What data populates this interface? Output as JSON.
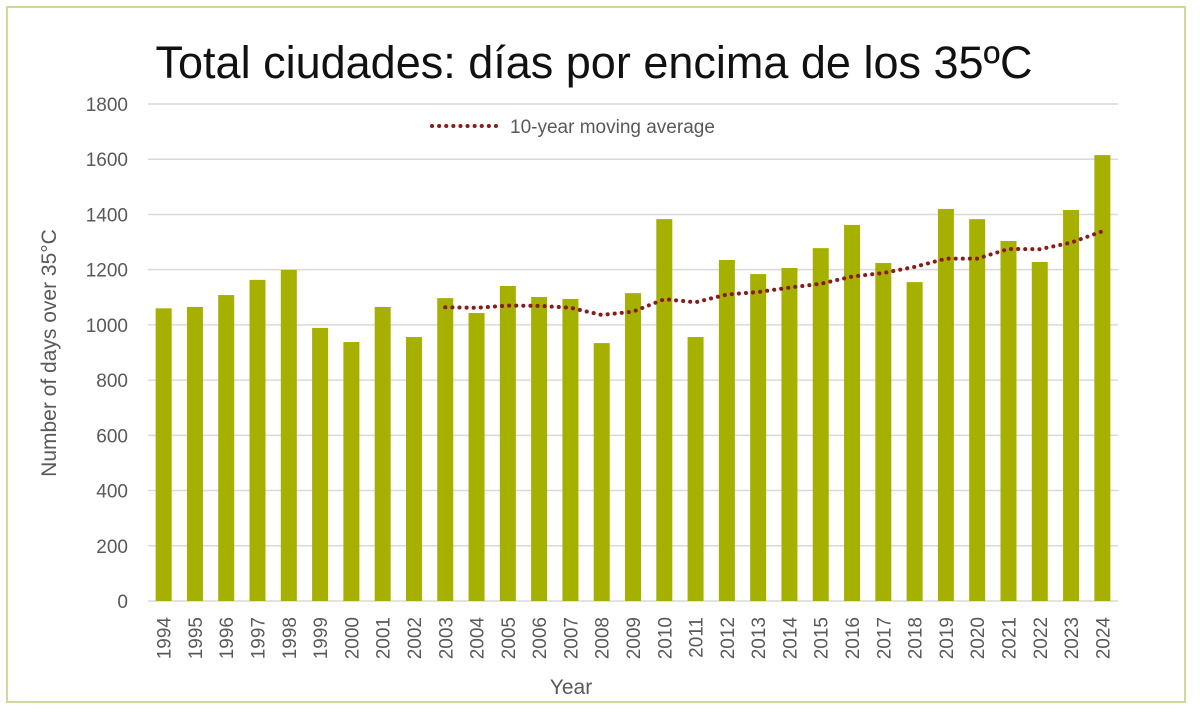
{
  "chart_data": {
    "type": "bar",
    "title": "Total ciudades: días por encima de los 35ºC",
    "xlabel": "Year",
    "ylabel": "Number of days over 35°C",
    "ylim": [
      0,
      1800
    ],
    "yticks": [
      0,
      200,
      400,
      600,
      800,
      1000,
      1200,
      1400,
      1600,
      1800
    ],
    "grid": true,
    "legend_placement": "top-center",
    "categories": [
      "1994",
      "1995",
      "1996",
      "1997",
      "1998",
      "1999",
      "2000",
      "2001",
      "2002",
      "2003",
      "2004",
      "2005",
      "2006",
      "2007",
      "2008",
      "2009",
      "2010",
      "2011",
      "2012",
      "2013",
      "2014",
      "2015",
      "2016",
      "2017",
      "2018",
      "2019",
      "2020",
      "2021",
      "2022",
      "2023",
      "2024"
    ],
    "values": [
      1060,
      1065,
      1108,
      1163,
      1199,
      989,
      938,
      1065,
      956,
      1097,
      1043,
      1141,
      1101,
      1094,
      934,
      1115,
      1383,
      956,
      1235,
      1184,
      1206,
      1278,
      1362,
      1224,
      1155,
      1420,
      1383,
      1304,
      1228,
      1416,
      1615
    ],
    "series": [
      {
        "name": "10-year moving average",
        "type": "line",
        "style": "dotted",
        "x": [
          "2003",
          "2004",
          "2005",
          "2006",
          "2007",
          "2008",
          "2009",
          "2010",
          "2011",
          "2012",
          "2013",
          "2014",
          "2015",
          "2016",
          "2017",
          "2018",
          "2019",
          "2020",
          "2021",
          "2022",
          "2023",
          "2024"
        ],
        "values": [
          1064,
          1062,
          1070,
          1069,
          1062,
          1036,
          1048,
          1093,
          1082,
          1110,
          1119,
          1135,
          1149,
          1175,
          1188,
          1210,
          1240,
          1240,
          1275,
          1274,
          1298,
          1339
        ]
      }
    ],
    "colors": {
      "bars": "#a5b000",
      "moving_average": "#8b1a1a",
      "grid": "#d9d9d9",
      "frame": "#d3d89a"
    }
  }
}
